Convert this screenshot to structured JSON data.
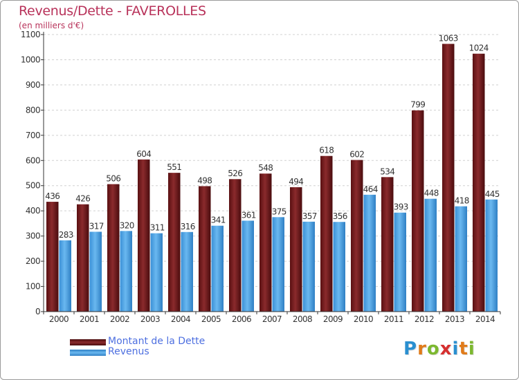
{
  "header": {
    "title": "Revenus/Dette - FAVEROLLES",
    "subtitle": "(en milliers d'€)"
  },
  "legend": {
    "debt_label": "Montant de la Dette",
    "revenue_label": "Revenus"
  },
  "logo": {
    "text": "Proxiti",
    "letters": [
      "P",
      "r",
      "o",
      "x",
      "i",
      "t",
      "i"
    ],
    "letter_colors": [
      "#2a8fd0",
      "#e07b1a",
      "#7cb82f",
      "#d62f2f",
      "#2a8fd0",
      "#e07b1a",
      "#7cb82f"
    ]
  },
  "colors": {
    "debt": "#7a1c1e",
    "revenue": "#4aa3e6",
    "text_accent": "#b8325a",
    "legend_text": "#4d6fe0"
  },
  "chart_data": {
    "type": "bar",
    "title": "Revenus/Dette - FAVEROLLES",
    "subtitle": "(en milliers d'€)",
    "categories": [
      "2000",
      "2001",
      "2002",
      "2003",
      "2004",
      "2005",
      "2006",
      "2007",
      "2008",
      "2009",
      "2010",
      "2011",
      "2012",
      "2013",
      "2014"
    ],
    "series": [
      {
        "name": "Montant de la Dette",
        "values": [
          436,
          426,
          506,
          604,
          551,
          498,
          526,
          548,
          494,
          618,
          602,
          534,
          799,
          1063,
          1024
        ]
      },
      {
        "name": "Revenus",
        "values": [
          283,
          317,
          320,
          311,
          316,
          341,
          361,
          375,
          357,
          356,
          464,
          393,
          448,
          418,
          445
        ]
      }
    ],
    "ylim": [
      0,
      1100
    ],
    "yticks": [
      0,
      100,
      200,
      300,
      400,
      500,
      600,
      700,
      800,
      900,
      1000,
      1100
    ],
    "grid": true,
    "legend_position": "bottom-left"
  }
}
